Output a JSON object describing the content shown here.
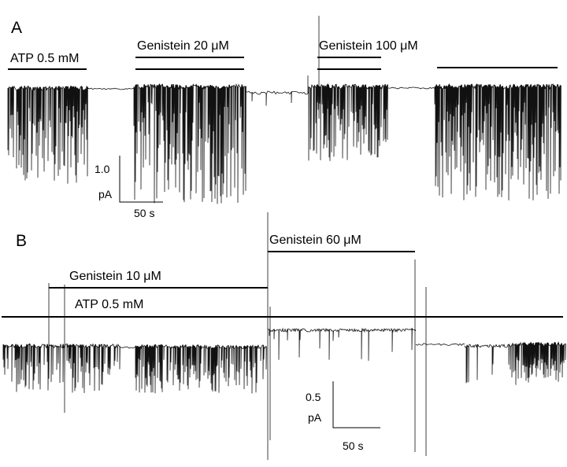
{
  "panel_a": {
    "letter": "A",
    "labels": {
      "atp": "ATP 0.5 mM",
      "gen20": "Genistein 20 μM",
      "gen100": "Genistein 100 μM"
    },
    "scale": {
      "amp_value": "1.0",
      "amp_unit": "pA",
      "time": "50 s"
    }
  },
  "panel_b": {
    "letter": "B",
    "labels": {
      "gen60": "Genistein 60 μM",
      "gen10": "Genistein 10 μM",
      "atp": "ATP 0.5 mM"
    },
    "scale": {
      "amp_value": "0.5",
      "amp_unit": "pA",
      "time": "50 s"
    }
  }
}
